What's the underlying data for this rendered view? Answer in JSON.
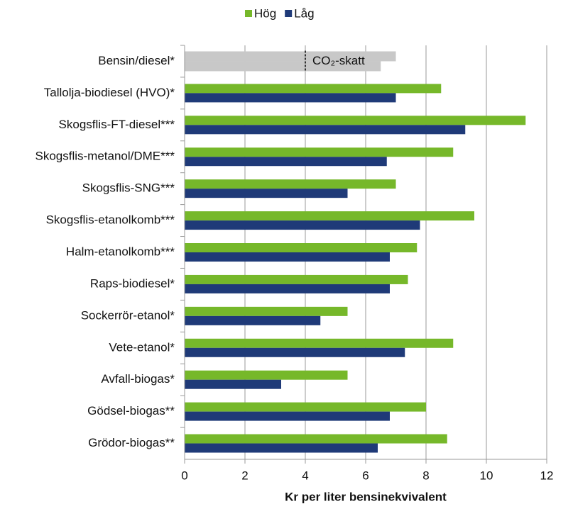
{
  "chart_data": {
    "type": "hbar",
    "categories": [
      "Bensin/diesel*",
      "Tallolja-biodiesel (HVO)*",
      "Skogsflis-FT-diesel***",
      "Skogsflis-metanol/DME***",
      "Skogsflis-SNG***",
      "Skogsflis-etanolkomb***",
      "Halm-etanolkomb***",
      "Raps-biodiesel*",
      "Sockerrör-etanol*",
      "Vete-etanol*",
      "Avfall-biogas*",
      "Gödsel-biogas**",
      "Grödor-biogas**"
    ],
    "series": [
      {
        "name": "Hög",
        "color": "#76b82a",
        "values": [
          null,
          8.5,
          11.3,
          8.9,
          7.0,
          9.6,
          7.7,
          7.4,
          5.4,
          8.9,
          5.4,
          8.0,
          8.7
        ]
      },
      {
        "name": "Låg",
        "color": "#1f3a78",
        "values": [
          null,
          7.0,
          9.3,
          6.7,
          5.4,
          7.8,
          6.8,
          6.8,
          4.5,
          7.3,
          3.2,
          6.8,
          6.4
        ]
      }
    ],
    "reference": {
      "values": [
        7.0,
        6.5
      ],
      "color": "#c8c8c8",
      "marker": 4,
      "label": "CO₂-skatt"
    },
    "xlabel": "Kr per liter bensinekvivalent",
    "xlim": [
      0,
      12
    ],
    "xticks": [
      0,
      2,
      4,
      6,
      8,
      10,
      12
    ],
    "grid": true,
    "legend": "top"
  }
}
